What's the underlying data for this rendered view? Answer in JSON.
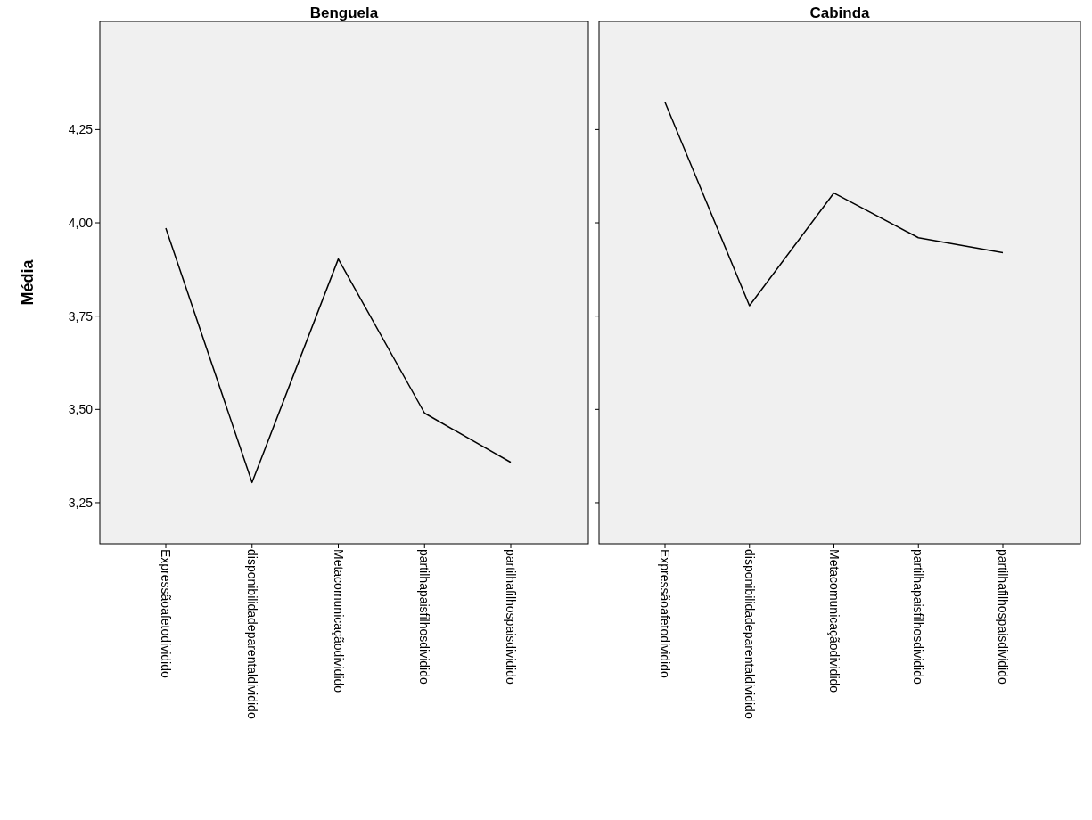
{
  "chart_data": [
    {
      "type": "line",
      "title": "Benguela",
      "ylabel": "Média",
      "categories": [
        "Expressãoafetodividido",
        "disponibilidadeparentaldividido",
        "Metacomunicaçãodividido",
        "partilhapaisfilhosdividido",
        "partilhafilhospaisdividido"
      ],
      "series": [
        {
          "color": "#000000",
          "values": [
            3.986,
            3.304,
            3.903,
            3.49,
            3.358
          ]
        }
      ],
      "ylim": [
        3.14,
        4.54
      ],
      "yticks": [
        {
          "value": 3.25,
          "label": "3,25"
        },
        {
          "value": 3.5,
          "label": "3,50"
        },
        {
          "value": 3.75,
          "label": "3,75"
        },
        {
          "value": 4.0,
          "label": "4,00"
        },
        {
          "value": 4.25,
          "label": "4,25"
        }
      ],
      "grid": false,
      "marker": "none"
    },
    {
      "type": "line",
      "title": "Cabinda",
      "categories": [
        "Expressãoafetodividido",
        "disponibilidadeparentaldividido",
        "Metacomunicaçãodividido",
        "partilhapaisfilhosdividido",
        "partilhafilhospaisdividido"
      ],
      "series": [
        {
          "color": "#000000",
          "values": [
            4.323,
            3.778,
            4.08,
            3.96,
            3.92
          ]
        }
      ],
      "ylim": [
        3.14,
        4.54
      ],
      "yticks": [
        {
          "value": 3.25,
          "label": null
        },
        {
          "value": 3.5,
          "label": null
        },
        {
          "value": 3.75,
          "label": null
        },
        {
          "value": 4.0,
          "label": null
        },
        {
          "value": 4.25,
          "label": null
        }
      ],
      "tick_labels": "x",
      "grid": false,
      "marker": "none"
    }
  ]
}
